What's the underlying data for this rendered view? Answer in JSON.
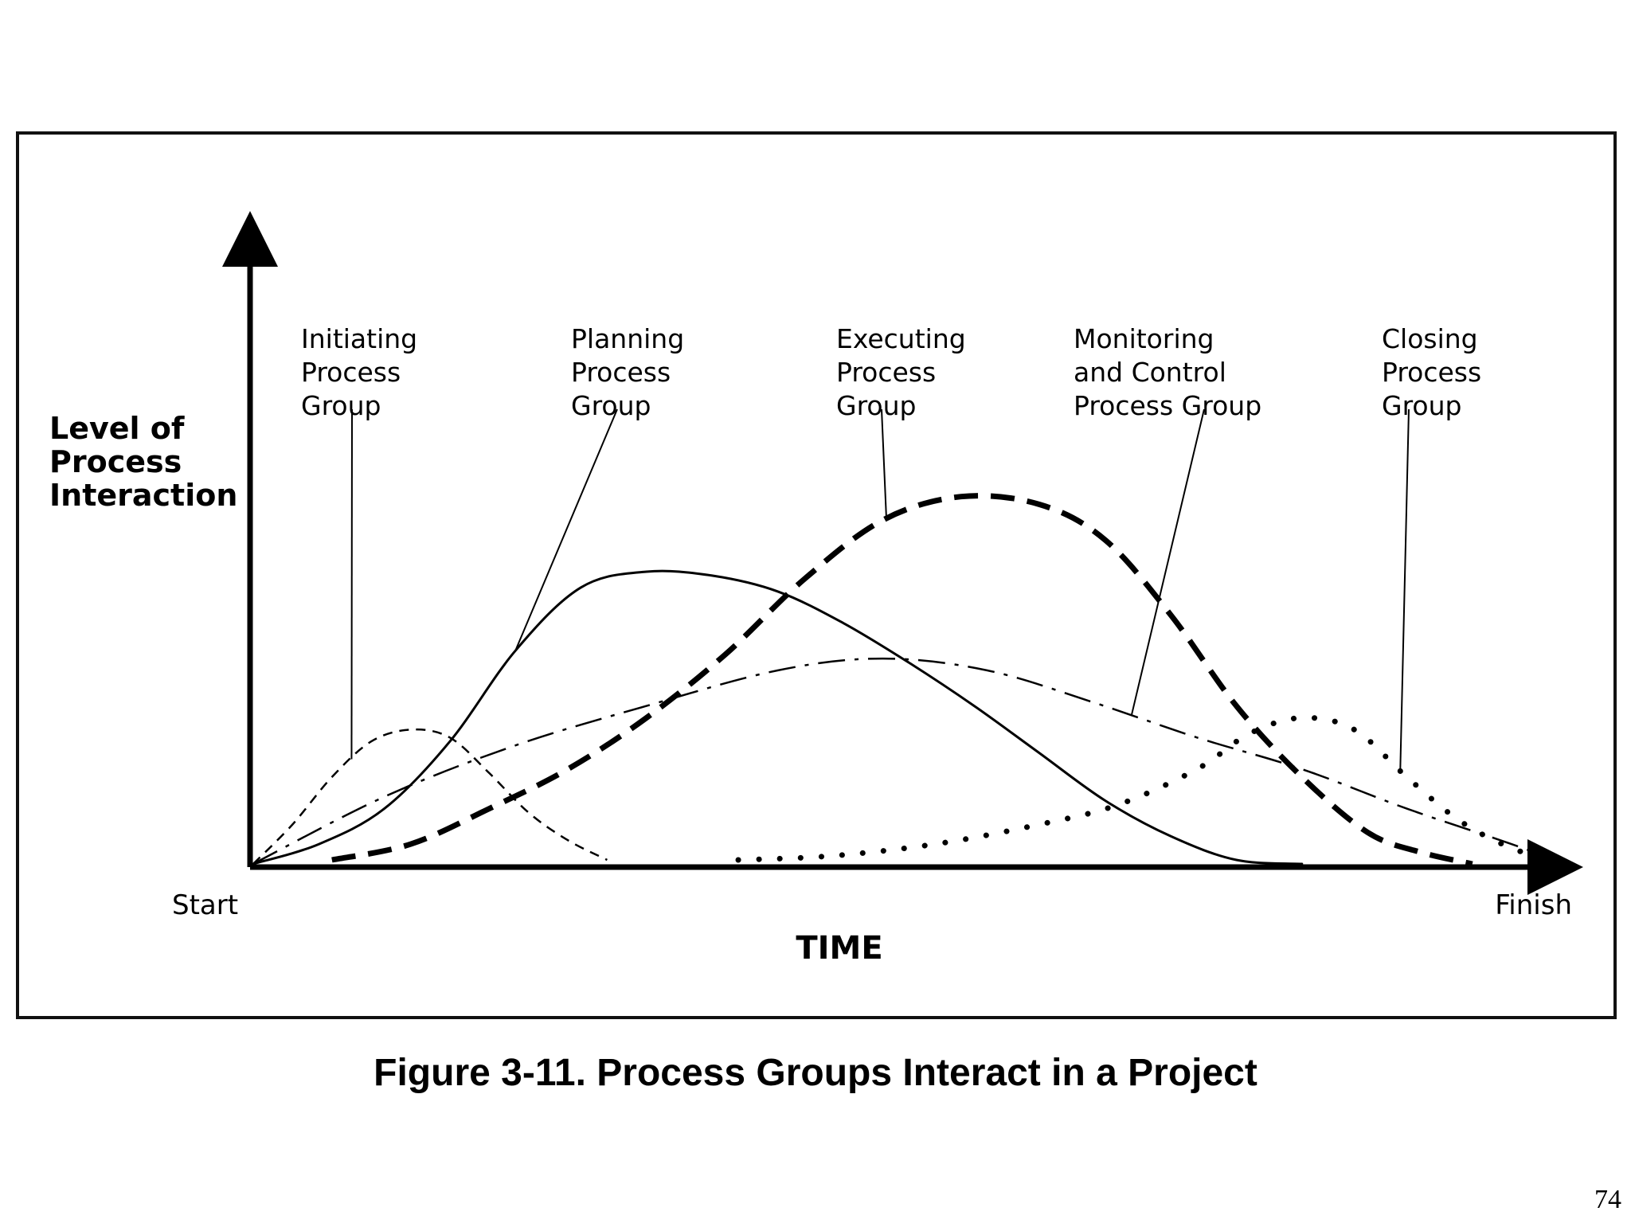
{
  "figure": {
    "caption": "Figure 3-11. Process Groups Interact in a Project",
    "page_number": "74"
  },
  "chart_data": {
    "type": "line",
    "title": "",
    "xlabel": "TIME",
    "ylabel": "Level of Process Interaction",
    "ylabel_lines": [
      "Level of",
      "Process",
      "Interaction"
    ],
    "x_start_label": "Start",
    "x_end_label": "Finish",
    "xlim": [
      0,
      100
    ],
    "ylim": [
      0,
      100
    ],
    "grid": false,
    "legend": "none",
    "series": [
      {
        "name": "Initiating Process Group",
        "label_lines": [
          "Initiating",
          "Process",
          "Group"
        ],
        "style": "short-dash",
        "x": [
          0,
          3,
          6,
          9,
          12,
          15,
          18,
          21,
          24,
          27
        ],
        "y": [
          0,
          10,
          22,
          31,
          34,
          32,
          23,
          13,
          6,
          1
        ]
      },
      {
        "name": "Planning Process Group",
        "label_lines": [
          "Planning",
          "Process",
          "Group"
        ],
        "style": "solid",
        "x": [
          0,
          5,
          10,
          15,
          20,
          25,
          30,
          35,
          40,
          45,
          50,
          55,
          60,
          65,
          70,
          75,
          80
        ],
        "y": [
          0,
          5,
          14,
          31,
          54,
          70,
          74,
          73,
          69,
          61,
          51,
          40,
          28,
          16,
          7,
          1,
          0
        ]
      },
      {
        "name": "Executing Process Group",
        "label_lines": [
          "Executing",
          "Process",
          "Group"
        ],
        "style": "heavy-dash",
        "x": [
          6,
          12,
          18,
          24,
          30,
          36,
          42,
          48,
          54,
          60,
          65,
          70,
          75,
          80,
          85,
          89,
          93
        ],
        "y": [
          1,
          5,
          14,
          24,
          37,
          53,
          72,
          87,
          93,
          91,
          82,
          63,
          40,
          22,
          8,
          3,
          0
        ]
      },
      {
        "name": "Monitoring and Control Process Group",
        "label_lines": [
          "Monitoring",
          "and Control",
          "Process Group"
        ],
        "style": "dash-dot",
        "x": [
          0,
          10,
          20,
          30,
          40,
          48,
          56,
          64,
          72,
          80,
          88,
          96,
          100
        ],
        "y": [
          0,
          17,
          30,
          40,
          49,
          52,
          49,
          41,
          32,
          24,
          14,
          5,
          0
        ]
      },
      {
        "name": "Closing Process Group",
        "label_lines": [
          "Closing",
          "Process",
          "Group"
        ],
        "style": "dotted",
        "x": [
          37,
          44,
          52,
          60,
          66,
          72,
          76,
          80,
          84,
          88,
          92,
          96,
          100
        ],
        "y": [
          1,
          2,
          5,
          10,
          15,
          24,
          33,
          37,
          34,
          22,
          11,
          4,
          0
        ]
      }
    ]
  }
}
